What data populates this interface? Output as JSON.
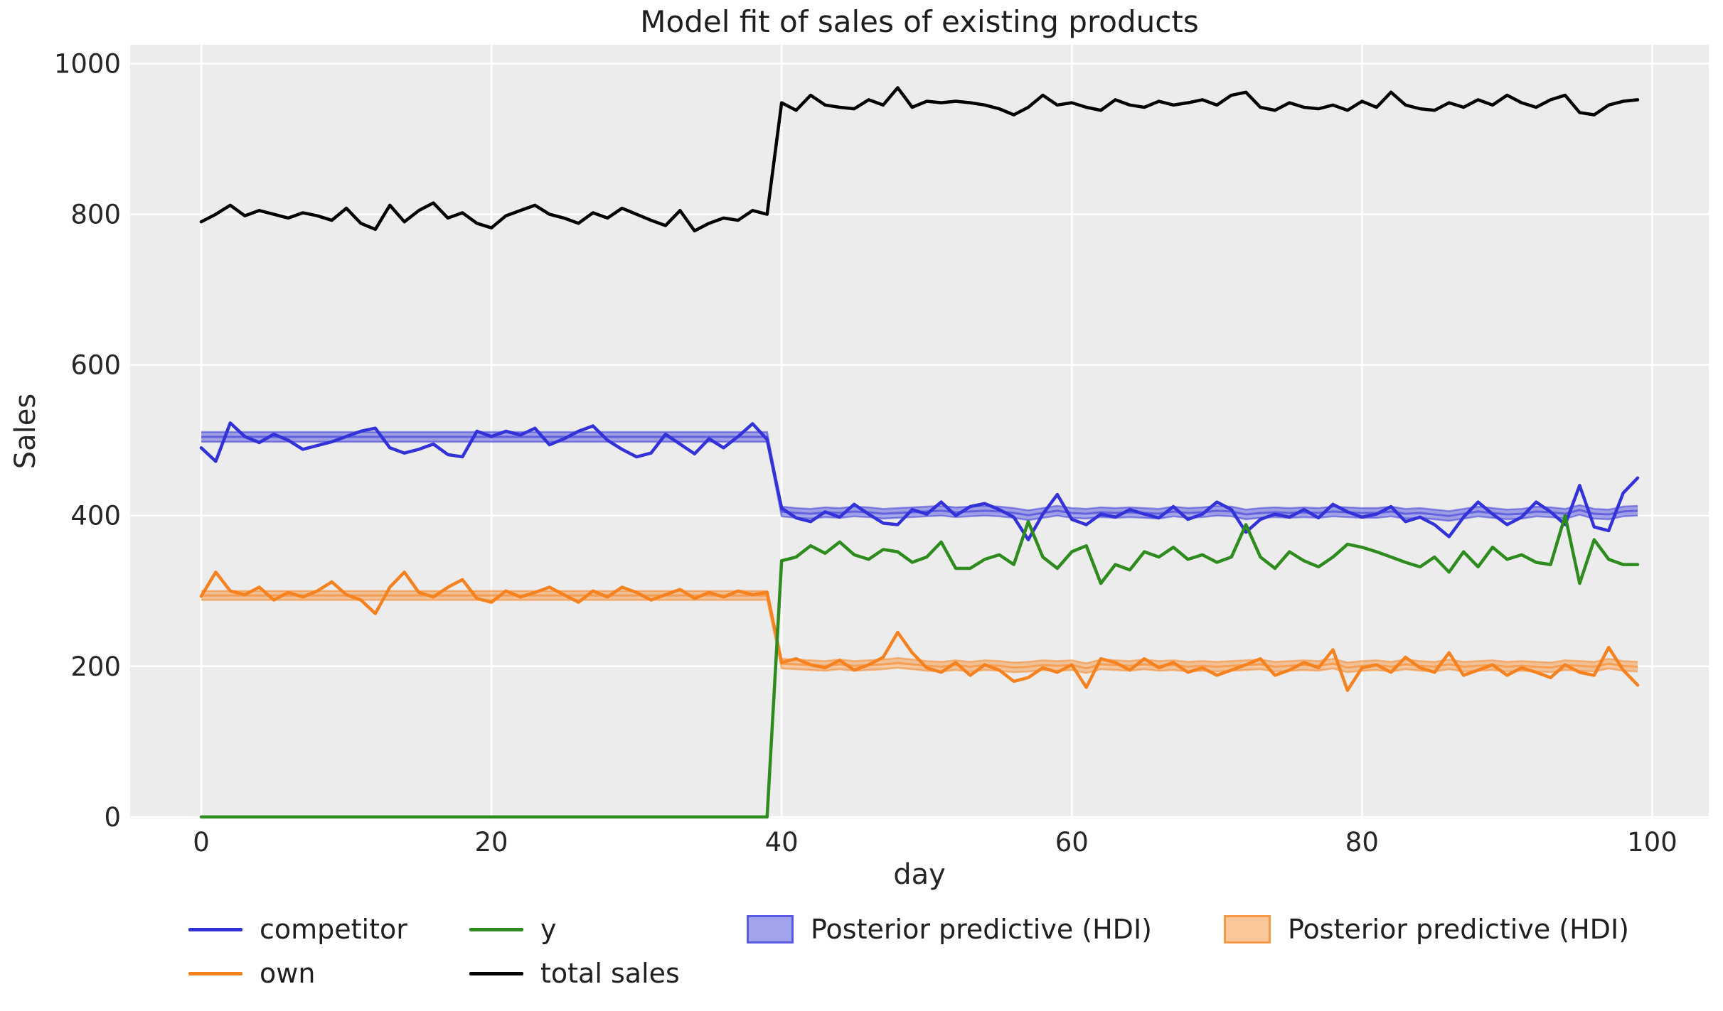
{
  "title": "Model fit of sales of existing products",
  "legend": {
    "items": [
      {
        "label": "competitor"
      },
      {
        "label": "own"
      },
      {
        "label": "y"
      },
      {
        "label": "total sales"
      },
      {
        "label": "Posterior predictive (HDI)"
      },
      {
        "label": "Posterior predictive (HDI)"
      }
    ]
  },
  "colors": {
    "figure_background": "#ffffff",
    "axes_background": "#ececec",
    "grid": "#ffffff",
    "text": "#262626",
    "competitor": "#3232d8",
    "own": "#f5821f",
    "y": "#2e8b1d",
    "total_sales": "#000000"
  },
  "chart_data": {
    "type": "line",
    "title": "Model fit of sales of existing products",
    "xlabel": "day",
    "ylabel": "Sales",
    "x_ticks": [
      0,
      20,
      40,
      60,
      80,
      100
    ],
    "y_ticks": [
      0,
      200,
      400,
      600,
      800,
      1000
    ],
    "xlim": [
      -4.9,
      103.9
    ],
    "ylim": [
      -2,
      1025
    ],
    "grid": true,
    "legend_position": "below",
    "x_start": 0,
    "x_step": 1,
    "series": [
      {
        "name": "competitor",
        "color": "#3232d8",
        "values": [
          490,
          472,
          523,
          505,
          497,
          508,
          500,
          488,
          493,
          498,
          505,
          512,
          516,
          490,
          483,
          488,
          495,
          481,
          478,
          512,
          505,
          512,
          507,
          516,
          494,
          502,
          512,
          519,
          500,
          488,
          478,
          483,
          508,
          495,
          482,
          502,
          490,
          505,
          522,
          501,
          410,
          397,
          392,
          405,
          398,
          415,
          402,
          390,
          388,
          408,
          402,
          418,
          400,
          412,
          416,
          408,
          398,
          368,
          402,
          428,
          395,
          388,
          402,
          398,
          408,
          402,
          397,
          412,
          395,
          402,
          418,
          408,
          378,
          395,
          402,
          398,
          408,
          397,
          415,
          405,
          398,
          402,
          412,
          392,
          398,
          388,
          372,
          398,
          418,
          402,
          388,
          398,
          418,
          405,
          388,
          440,
          385,
          380,
          430,
          450
        ]
      },
      {
        "name": "own",
        "color": "#f5821f",
        "values": [
          293,
          325,
          300,
          295,
          305,
          288,
          298,
          292,
          300,
          312,
          295,
          288,
          270,
          305,
          325,
          298,
          292,
          305,
          315,
          290,
          285,
          300,
          292,
          298,
          305,
          295,
          285,
          300,
          292,
          305,
          298,
          288,
          295,
          302,
          290,
          298,
          292,
          300,
          295,
          298,
          205,
          210,
          202,
          198,
          208,
          195,
          202,
          212,
          245,
          218,
          198,
          192,
          205,
          188,
          202,
          195,
          180,
          185,
          198,
          192,
          202,
          172,
          210,
          205,
          195,
          210,
          198,
          205,
          192,
          198,
          188,
          195,
          202,
          210,
          188,
          195,
          205,
          198,
          222,
          168,
          198,
          202,
          192,
          212,
          198,
          192,
          218,
          188,
          195,
          202,
          188,
          198,
          192,
          185,
          202,
          192,
          188,
          225,
          195,
          175
        ]
      },
      {
        "name": "y",
        "color": "#2e8b1d",
        "values": [
          0,
          0,
          0,
          0,
          0,
          0,
          0,
          0,
          0,
          0,
          0,
          0,
          0,
          0,
          0,
          0,
          0,
          0,
          0,
          0,
          0,
          0,
          0,
          0,
          0,
          0,
          0,
          0,
          0,
          0,
          0,
          0,
          0,
          0,
          0,
          0,
          0,
          0,
          0,
          0,
          340,
          345,
          360,
          350,
          365,
          348,
          342,
          355,
          352,
          338,
          345,
          365,
          330,
          330,
          342,
          348,
          335,
          392,
          345,
          330,
          352,
          360,
          310,
          335,
          328,
          352,
          345,
          358,
          342,
          348,
          338,
          345,
          388,
          345,
          330,
          352,
          340,
          332,
          345,
          362,
          358,
          352,
          345,
          338,
          332,
          345,
          325,
          352,
          332,
          358,
          342,
          348,
          338,
          335,
          400,
          310,
          368,
          342,
          335,
          335
        ]
      },
      {
        "name": "total sales",
        "color": "#000000",
        "values": [
          790,
          800,
          812,
          798,
          805,
          800,
          795,
          802,
          798,
          792,
          808,
          788,
          780,
          812,
          790,
          805,
          815,
          795,
          802,
          788,
          782,
          798,
          805,
          812,
          800,
          795,
          788,
          802,
          795,
          808,
          800,
          792,
          785,
          805,
          778,
          788,
          795,
          792,
          805,
          800,
          948,
          938,
          958,
          945,
          942,
          940,
          952,
          945,
          968,
          942,
          950,
          948,
          950,
          948,
          945,
          940,
          932,
          942,
          958,
          945,
          948,
          942,
          938,
          952,
          945,
          942,
          950,
          945,
          948,
          952,
          945,
          958,
          962,
          942,
          938,
          948,
          942,
          940,
          945,
          938,
          950,
          942,
          962,
          945,
          940,
          938,
          948,
          942,
          952,
          945,
          958,
          948,
          942,
          952,
          958,
          935,
          932,
          945,
          950,
          952
        ]
      }
    ],
    "bands": [
      {
        "name": "Posterior predictive (HDI)",
        "color": "#3232d8",
        "days_pre": 40,
        "lower_pre": 498,
        "upper_pre": 511,
        "lower_post": [
          399,
          397,
          396,
          398,
          397,
          399,
          398,
          396,
          397,
          398,
          399,
          400,
          398,
          399,
          400,
          399,
          397,
          394,
          397,
          400,
          397,
          396,
          398,
          397,
          398,
          397,
          396,
          399,
          397,
          398,
          400,
          399,
          395,
          397,
          398,
          397,
          398,
          397,
          399,
          398,
          397,
          397,
          399,
          396,
          397,
          395,
          393,
          396,
          399,
          397,
          395,
          396,
          399,
          398,
          396,
          401,
          396,
          395,
          399,
          400
        ],
        "upper_post": [
          412,
          410,
          409,
          411,
          410,
          412,
          411,
          409,
          410,
          411,
          412,
          413,
          411,
          412,
          413,
          412,
          410,
          407,
          410,
          413,
          410,
          409,
          411,
          410,
          411,
          410,
          409,
          412,
          410,
          411,
          413,
          412,
          408,
          410,
          411,
          410,
          411,
          410,
          412,
          411,
          410,
          410,
          412,
          409,
          410,
          408,
          406,
          409,
          412,
          410,
          408,
          409,
          412,
          411,
          409,
          414,
          409,
          408,
          412,
          413
        ]
      },
      {
        "name": "Posterior predictive (HDI)",
        "color": "#f5821f",
        "days_pre": 40,
        "lower_pre": 288,
        "upper_pre": 300,
        "lower_post": [
          197,
          196,
          195,
          194,
          196,
          194,
          195,
          196,
          198,
          196,
          194,
          193,
          195,
          193,
          195,
          194,
          192,
          193,
          195,
          194,
          195,
          191,
          196,
          195,
          194,
          196,
          194,
          195,
          193,
          194,
          193,
          194,
          195,
          196,
          193,
          194,
          195,
          194,
          197,
          192,
          194,
          195,
          193,
          196,
          194,
          193,
          196,
          193,
          194,
          195,
          193,
          194,
          193,
          192,
          195,
          194,
          193,
          197,
          194,
          193
        ],
        "upper_post": [
          210,
          209,
          208,
          207,
          209,
          207,
          208,
          209,
          211,
          209,
          207,
          206,
          208,
          206,
          208,
          207,
          205,
          206,
          208,
          207,
          208,
          204,
          209,
          208,
          207,
          209,
          207,
          208,
          206,
          207,
          206,
          207,
          208,
          209,
          206,
          207,
          208,
          207,
          210,
          205,
          207,
          208,
          206,
          209,
          207,
          206,
          209,
          206,
          207,
          208,
          206,
          207,
          206,
          205,
          208,
          207,
          206,
          210,
          207,
          206
        ]
      }
    ]
  }
}
